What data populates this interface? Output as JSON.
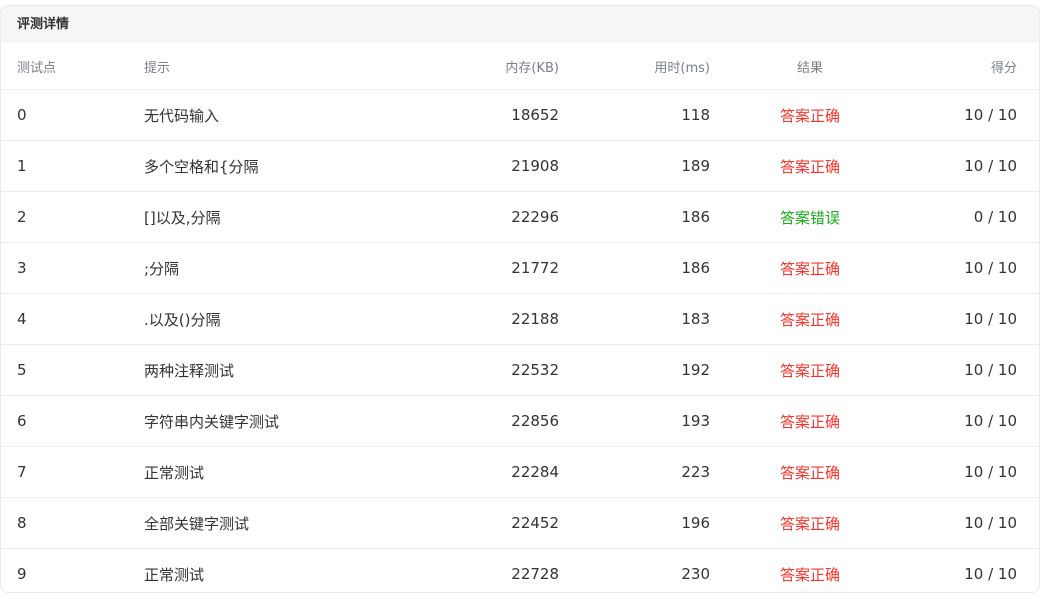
{
  "title": "评测详情",
  "columns": [
    "测试点",
    "提示",
    "内存(KB)",
    "用时(ms)",
    "结果",
    "得分"
  ],
  "status_colors": {
    "答案正确": "#f5362e",
    "答案错误": "#1aad19"
  },
  "rows": [
    {
      "id": "0",
      "hint": "无代码输入",
      "memory": "18652",
      "time": "118",
      "result": "答案正确",
      "score": "10 / 10"
    },
    {
      "id": "1",
      "hint": "多个空格和{分隔",
      "memory": "21908",
      "time": "189",
      "result": "答案正确",
      "score": "10 / 10"
    },
    {
      "id": "2",
      "hint": "[]以及,分隔",
      "memory": "22296",
      "time": "186",
      "result": "答案错误",
      "score": "0 / 10"
    },
    {
      "id": "3",
      "hint": ";分隔",
      "memory": "21772",
      "time": "186",
      "result": "答案正确",
      "score": "10 / 10"
    },
    {
      "id": "4",
      "hint": ".以及()分隔",
      "memory": "22188",
      "time": "183",
      "result": "答案正确",
      "score": "10 / 10"
    },
    {
      "id": "5",
      "hint": "两种注释测试",
      "memory": "22532",
      "time": "192",
      "result": "答案正确",
      "score": "10 / 10"
    },
    {
      "id": "6",
      "hint": "字符串内关键字测试",
      "memory": "22856",
      "time": "193",
      "result": "答案正确",
      "score": "10 / 10"
    },
    {
      "id": "7",
      "hint": "正常测试",
      "memory": "22284",
      "time": "223",
      "result": "答案正确",
      "score": "10 / 10"
    },
    {
      "id": "8",
      "hint": "全部关键字测试",
      "memory": "22452",
      "time": "196",
      "result": "答案正确",
      "score": "10 / 10"
    },
    {
      "id": "9",
      "hint": "正常测试",
      "memory": "22728",
      "time": "230",
      "result": "答案正确",
      "score": "10 / 10"
    }
  ]
}
